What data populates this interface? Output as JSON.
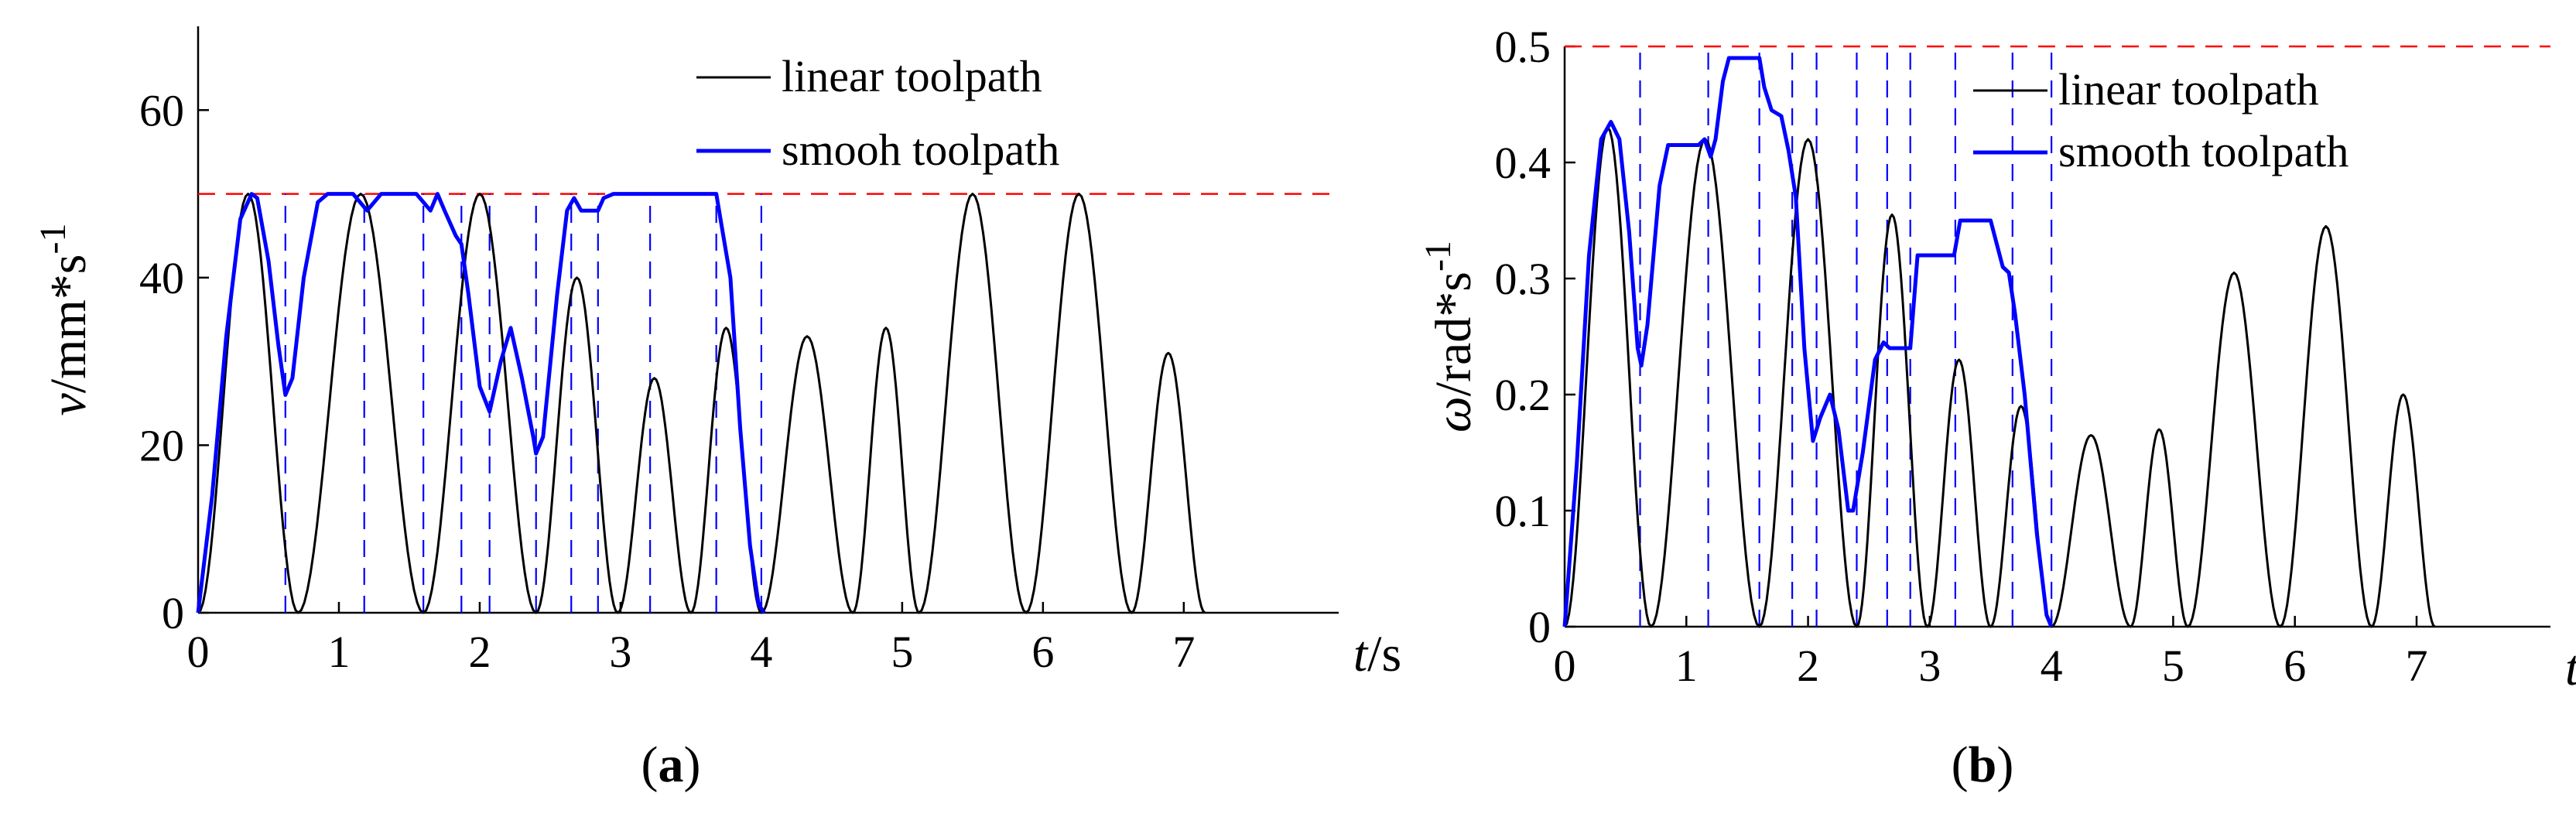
{
  "chart_data": [
    {
      "type": "line",
      "panel_label": "a",
      "ylabel": "v/mm*s-1",
      "ylabel_parts": {
        "symbol": "v",
        "unit": "/mm*s",
        "superscript": "-1"
      },
      "xlabel": "t/s",
      "xlabel_parts": {
        "symbol": "t",
        "unit": "/s"
      },
      "xlim": [
        0,
        8.1
      ],
      "ylim": [
        0,
        70
      ],
      "xticks": [
        0,
        1,
        2,
        3,
        4,
        5,
        6,
        7
      ],
      "yticks": [
        0,
        20,
        40,
        60
      ],
      "grid": false,
      "legend_position": "top-right",
      "limit_line": 50,
      "limit_color": "#ff0000",
      "segment_lines": [
        0.62,
        1.18,
        1.6,
        1.87,
        2.07,
        2.4,
        2.65,
        2.84,
        3.21,
        3.68,
        4.0
      ],
      "segment_color": "#0000ff",
      "series": [
        {
          "name": "linear toolpath",
          "color": "#000000",
          "peaks": [
            [
              0,
              0.71,
              50
            ],
            [
              0.71,
              1.6,
              50
            ],
            [
              1.6,
              2.4,
              50
            ],
            [
              2.4,
              2.98,
              40
            ],
            [
              2.98,
              3.5,
              28
            ],
            [
              3.5,
              4.0,
              34
            ],
            [
              4.0,
              4.65,
              33
            ],
            [
              4.65,
              5.12,
              34
            ],
            [
              5.12,
              5.88,
              50
            ],
            [
              5.88,
              6.63,
              50
            ],
            [
              6.63,
              7.15,
              31
            ]
          ]
        },
        {
          "name": "smooh toolpath",
          "color": "#0000ff",
          "points": [
            [
              0,
              0
            ],
            [
              0.1,
              14
            ],
            [
              0.2,
              33
            ],
            [
              0.3,
              47
            ],
            [
              0.38,
              50
            ],
            [
              0.42,
              49.5
            ],
            [
              0.5,
              42
            ],
            [
              0.57,
              32
            ],
            [
              0.62,
              26
            ],
            [
              0.67,
              28
            ],
            [
              0.75,
              40
            ],
            [
              0.85,
              49
            ],
            [
              0.92,
              50
            ],
            [
              1.1,
              50
            ],
            [
              1.15,
              49
            ],
            [
              1.2,
              48
            ],
            [
              1.25,
              49
            ],
            [
              1.3,
              50
            ],
            [
              1.55,
              50
            ],
            [
              1.6,
              49
            ],
            [
              1.65,
              48
            ],
            [
              1.7,
              50
            ],
            [
              1.75,
              48
            ],
            [
              1.83,
              45
            ],
            [
              1.87,
              44
            ],
            [
              1.92,
              38
            ],
            [
              2.0,
              27
            ],
            [
              2.07,
              24
            ],
            [
              2.15,
              30
            ],
            [
              2.22,
              34
            ],
            [
              2.3,
              28
            ],
            [
              2.38,
              21
            ],
            [
              2.4,
              19
            ],
            [
              2.45,
              21
            ],
            [
              2.55,
              38
            ],
            [
              2.62,
              48
            ],
            [
              2.67,
              49.5
            ],
            [
              2.72,
              48
            ],
            [
              2.84,
              48
            ],
            [
              2.88,
              49.5
            ],
            [
              2.95,
              50
            ],
            [
              3.5,
              50
            ],
            [
              3.68,
              50
            ],
            [
              3.72,
              46
            ],
            [
              3.78,
              40
            ],
            [
              3.85,
              22
            ],
            [
              3.92,
              8
            ],
            [
              3.98,
              1
            ],
            [
              4.02,
              0
            ]
          ]
        }
      ]
    },
    {
      "type": "line",
      "panel_label": "b",
      "ylabel": "ω/rad*s-1",
      "ylabel_parts": {
        "symbol": "ω",
        "unit": "/rad*s",
        "superscript": "-1"
      },
      "xlabel": "t/s",
      "xlabel_parts": {
        "symbol": "t",
        "unit": "/s"
      },
      "xlim": [
        0,
        8.1
      ],
      "ylim": [
        0,
        0.5
      ],
      "xticks": [
        0,
        1,
        2,
        3,
        4,
        5,
        6,
        7
      ],
      "yticks": [
        0,
        0.1,
        0.2,
        0.3,
        0.4,
        0.5
      ],
      "grid": false,
      "legend_position": "top-right",
      "limit_line": 0.5,
      "limit_color": "#ff0000",
      "segment_lines": [
        0.62,
        1.18,
        1.6,
        1.87,
        2.07,
        2.4,
        2.65,
        2.84,
        3.21,
        3.68,
        4.0
      ],
      "segment_color": "#0000ff",
      "series": [
        {
          "name": "linear toolpath",
          "color": "#000000",
          "peaks": [
            [
              0,
              0.71,
              0.43
            ],
            [
              0.71,
              1.6,
              0.42
            ],
            [
              1.6,
              2.4,
              0.42
            ],
            [
              2.4,
              2.98,
              0.355
            ],
            [
              2.98,
              3.5,
              0.23
            ],
            [
              3.5,
              4.0,
              0.19
            ],
            [
              4.0,
              4.65,
              0.165
            ],
            [
              4.65,
              5.12,
              0.17
            ],
            [
              5.12,
              5.88,
              0.305
            ],
            [
              5.88,
              6.63,
              0.345
            ],
            [
              6.63,
              7.15,
              0.2
            ]
          ]
        },
        {
          "name": "smooth toolpath",
          "color": "#0000ff",
          "points": [
            [
              0,
              0
            ],
            [
              0.1,
              0.14
            ],
            [
              0.2,
              0.32
            ],
            [
              0.3,
              0.42
            ],
            [
              0.38,
              0.435
            ],
            [
              0.45,
              0.42
            ],
            [
              0.53,
              0.34
            ],
            [
              0.6,
              0.24
            ],
            [
              0.63,
              0.225
            ],
            [
              0.68,
              0.26
            ],
            [
              0.78,
              0.38
            ],
            [
              0.85,
              0.415
            ],
            [
              1.1,
              0.415
            ],
            [
              1.15,
              0.42
            ],
            [
              1.2,
              0.405
            ],
            [
              1.24,
              0.42
            ],
            [
              1.3,
              0.47
            ],
            [
              1.35,
              0.49
            ],
            [
              1.6,
              0.49
            ],
            [
              1.64,
              0.465
            ],
            [
              1.7,
              0.445
            ],
            [
              1.78,
              0.44
            ],
            [
              1.84,
              0.41
            ],
            [
              1.9,
              0.37
            ],
            [
              1.97,
              0.24
            ],
            [
              2.04,
              0.16
            ],
            [
              2.1,
              0.18
            ],
            [
              2.18,
              0.2
            ],
            [
              2.25,
              0.17
            ],
            [
              2.33,
              0.1
            ],
            [
              2.37,
              0.1
            ],
            [
              2.45,
              0.15
            ],
            [
              2.55,
              0.23
            ],
            [
              2.62,
              0.245
            ],
            [
              2.67,
              0.24
            ],
            [
              2.84,
              0.24
            ],
            [
              2.9,
              0.32
            ],
            [
              3.2,
              0.32
            ],
            [
              3.25,
              0.35
            ],
            [
              3.5,
              0.35
            ],
            [
              3.6,
              0.31
            ],
            [
              3.65,
              0.305
            ],
            [
              3.7,
              0.27
            ],
            [
              3.78,
              0.2
            ],
            [
              3.88,
              0.08
            ],
            [
              3.96,
              0.01
            ],
            [
              4.0,
              0
            ]
          ]
        }
      ]
    }
  ]
}
